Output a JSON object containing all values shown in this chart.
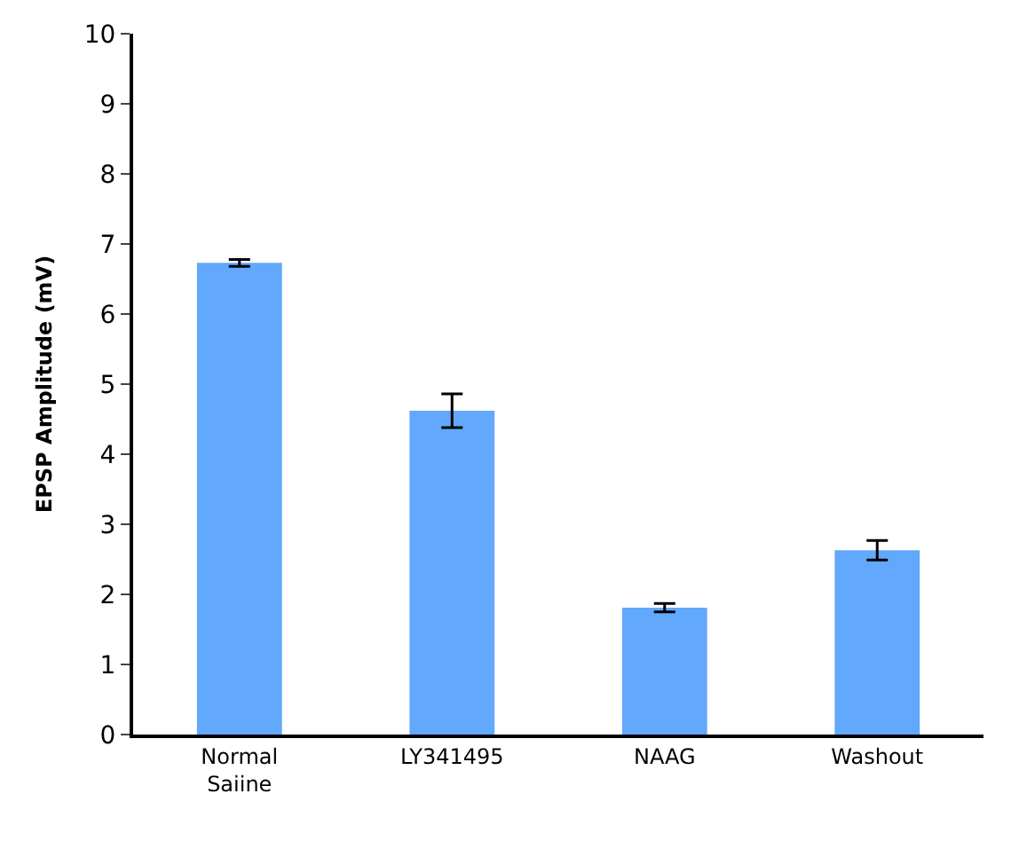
{
  "chart_data": {
    "type": "bar",
    "ylabel": "EPSP Amplitude (mV)",
    "categories": [
      "Normal Saiine",
      "LY341495",
      "NAAG",
      "Washout"
    ],
    "values": [
      6.73,
      4.62,
      1.81,
      2.63
    ],
    "errors": [
      0.05,
      0.24,
      0.06,
      0.14
    ],
    "color": "#62a8fc",
    "ylim": [
      0,
      10
    ],
    "yticks": [
      0,
      1,
      2,
      3,
      4,
      5,
      6,
      7,
      8,
      9,
      10
    ]
  }
}
